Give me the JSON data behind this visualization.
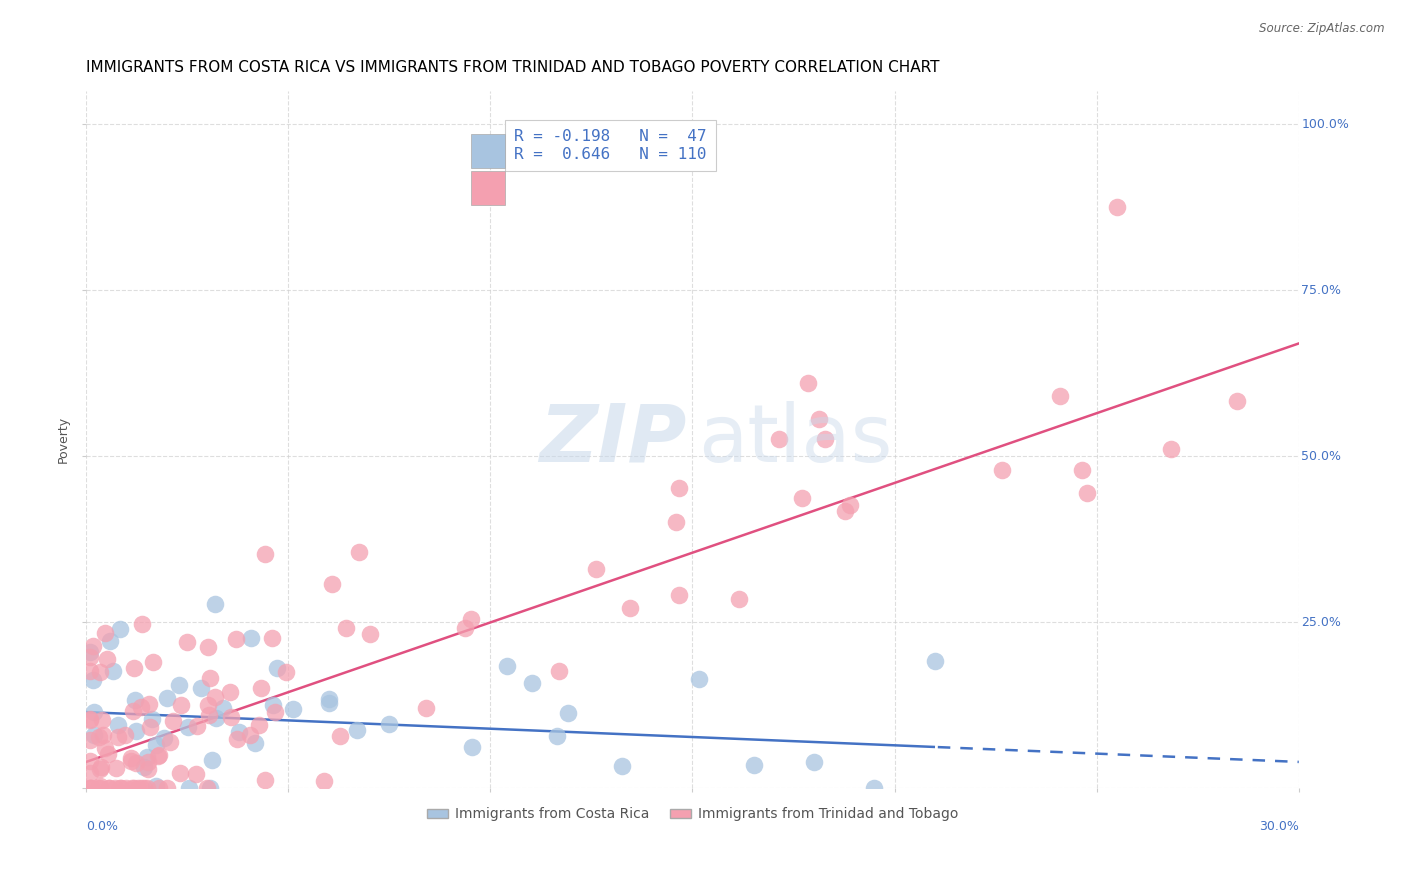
{
  "title": "IMMIGRANTS FROM COSTA RICA VS IMMIGRANTS FROM TRINIDAD AND TOBAGO POVERTY CORRELATION CHART",
  "source": "Source: ZipAtlas.com",
  "ylabel": "Poverty",
  "background_color": "#ffffff",
  "legend1_label": "Immigrants from Costa Rica",
  "legend2_label": "Immigrants from Trinidad and Tobago",
  "R1": -0.198,
  "N1": 47,
  "R2": 0.646,
  "N2": 110,
  "color_blue": "#a8c4e0",
  "color_pink": "#f4a0b0",
  "line_color_blue": "#4472c4",
  "line_color_pink": "#e05080",
  "xlim": [
    0.0,
    0.3
  ],
  "ylim": [
    0.0,
    1.05
  ],
  "grid_color": "#d0d0d0",
  "axis_label_color": "#4472c4",
  "title_color": "#000000",
  "title_fontsize": 11,
  "ylabel_fontsize": 9
}
